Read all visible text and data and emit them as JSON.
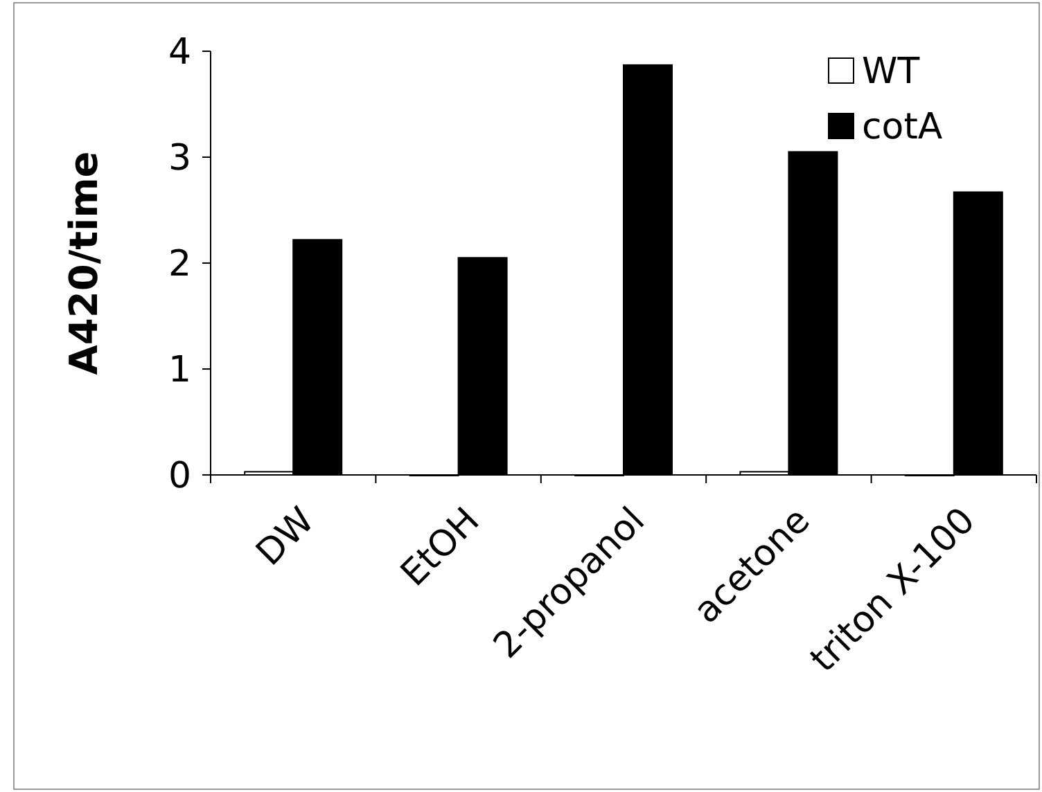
{
  "chart_data": {
    "type": "bar",
    "ylabel": "A420/time",
    "categories": [
      "DW",
      "EtOH",
      "2-propanol",
      "acetone",
      "triton X-100"
    ],
    "series": [
      {
        "name": "WT",
        "color": "#ffffff",
        "values": [
          0.03,
          0,
          0,
          0.03,
          0
        ]
      },
      {
        "name": "cotA",
        "color": "#000000",
        "values": [
          2.22,
          2.05,
          3.87,
          3.05,
          2.67
        ]
      }
    ],
    "ylim": [
      0,
      4
    ],
    "yticks": [
      0,
      1,
      2,
      3,
      4
    ],
    "legend": "top right",
    "grid": false
  }
}
